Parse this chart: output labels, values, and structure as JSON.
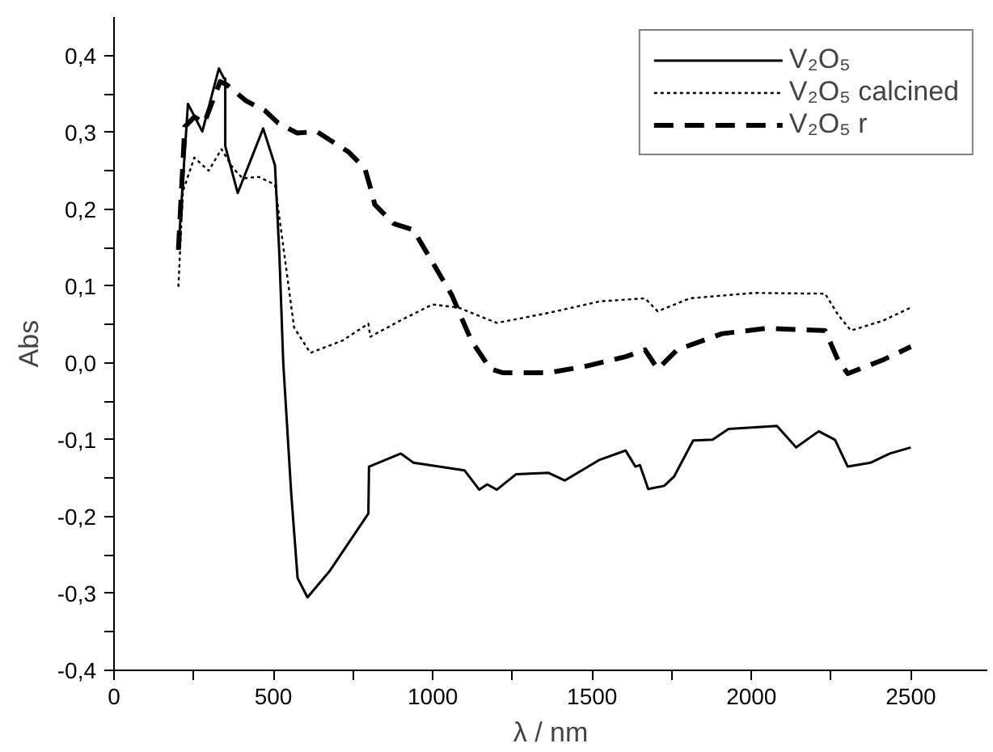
{
  "chart_data": {
    "type": "line",
    "xlabel": "λ / nm",
    "ylabel": "Abs",
    "xlim": [
      0,
      2740
    ],
    "ylim": [
      -0.4,
      0.45
    ],
    "xticks": [
      0,
      {
        "value": 250,
        "label": null
      },
      500,
      {
        "value": 750,
        "label": null
      },
      1000,
      {
        "value": 1250,
        "label": null
      },
      1500,
      {
        "value": 1750,
        "label": null
      },
      2000,
      {
        "value": 2250,
        "label": null
      },
      2500
    ],
    "yticks": [
      {
        "value": -0.4,
        "label": "-0,4"
      },
      {
        "value": -0.35,
        "label": null
      },
      {
        "value": -0.3,
        "label": "-0,3"
      },
      {
        "value": -0.25,
        "label": null
      },
      {
        "value": -0.2,
        "label": "-0,2"
      },
      {
        "value": -0.15,
        "label": null
      },
      {
        "value": -0.1,
        "label": "-0,1"
      },
      {
        "value": -0.05,
        "label": null
      },
      {
        "value": 0,
        "label": "0,0"
      },
      {
        "value": 0.05,
        "label": null
      },
      {
        "value": 0.1,
        "label": "0,1"
      },
      {
        "value": 0.15,
        "label": null
      },
      {
        "value": 0.2,
        "label": "0,2"
      },
      {
        "value": 0.25,
        "label": null
      },
      {
        "value": 0.3,
        "label": "0,3"
      },
      {
        "value": 0.35,
        "label": null
      },
      {
        "value": 0.4,
        "label": "0,4"
      }
    ],
    "grid": false,
    "legend": "top right",
    "marker": "none",
    "series": [
      {
        "name": "V₂O₅",
        "color": "#000000",
        "line_style": "solid",
        "x": [
          202,
          232,
          277,
          329,
          345,
          349,
          349,
          388,
          468,
          505,
          519,
          531,
          556,
          576,
          607,
          678,
          798,
          800,
          900,
          940,
          1100,
          1146,
          1171,
          1201,
          1261,
          1362,
          1414,
          1524,
          1605,
          1636,
          1650,
          1676,
          1726,
          1757,
          1817,
          1878,
          1928,
          2009,
          2080,
          2140,
          2211,
          2262,
          2302,
          2373,
          2434,
          2500
        ],
        "values": [
          0.147,
          0.337,
          0.301,
          0.383,
          0.37,
          0.37,
          0.282,
          0.221,
          0.305,
          0.257,
          0.139,
          0.0,
          -0.17,
          -0.28,
          -0.305,
          -0.27,
          -0.196,
          -0.135,
          -0.118,
          -0.13,
          -0.14,
          -0.165,
          -0.158,
          -0.165,
          -0.145,
          -0.143,
          -0.153,
          -0.126,
          -0.114,
          -0.135,
          -0.133,
          -0.164,
          -0.16,
          -0.148,
          -0.101,
          -0.1,
          -0.086,
          -0.084,
          -0.082,
          -0.11,
          -0.089,
          -0.1,
          -0.135,
          -0.13,
          -0.118,
          -0.11
        ]
      },
      {
        "name": "V₂O₅ calcined",
        "color": "#000000",
        "line_style": "dotted",
        "x": [
          202,
          216,
          252,
          297,
          337,
          374,
          404,
          454,
          505,
          535,
          565,
          616,
          717,
          798,
          804,
          898,
          999,
          1080,
          1201,
          1363,
          1524,
          1666,
          1706,
          1807,
          2009,
          2231,
          2271,
          2312,
          2413,
          2500
        ],
        "values": [
          0.099,
          0.223,
          0.267,
          0.25,
          0.278,
          0.253,
          0.24,
          0.242,
          0.232,
          0.139,
          0.046,
          0.013,
          0.029,
          0.051,
          0.034,
          0.055,
          0.076,
          0.072,
          0.052,
          0.065,
          0.08,
          0.084,
          0.067,
          0.084,
          0.091,
          0.09,
          0.063,
          0.042,
          0.055,
          0.072
        ]
      },
      {
        "name": "V₂O₅ r",
        "color": "#000000",
        "line_style": "dashed",
        "x": [
          202,
          222,
          252,
          283,
          333,
          353,
          414,
          474,
          515,
          575,
          636,
          737,
          787,
          808,
          818,
          878,
          939,
          999,
          1060,
          1121,
          1181,
          1221,
          1363,
          1484,
          1605,
          1666,
          1706,
          1767,
          1908,
          2049,
          2231,
          2271,
          2302,
          2413,
          2500
        ],
        "values": [
          0.147,
          0.307,
          0.32,
          0.312,
          0.366,
          0.362,
          0.341,
          0.328,
          0.312,
          0.299,
          0.301,
          0.274,
          0.253,
          0.223,
          0.206,
          0.181,
          0.173,
          0.131,
          0.088,
          0.029,
          -0.008,
          -0.013,
          -0.013,
          -0.004,
          0.008,
          0.017,
          -0.008,
          0.017,
          0.038,
          0.045,
          0.042,
          0.004,
          -0.014,
          0.004,
          0.021
        ]
      }
    ]
  }
}
